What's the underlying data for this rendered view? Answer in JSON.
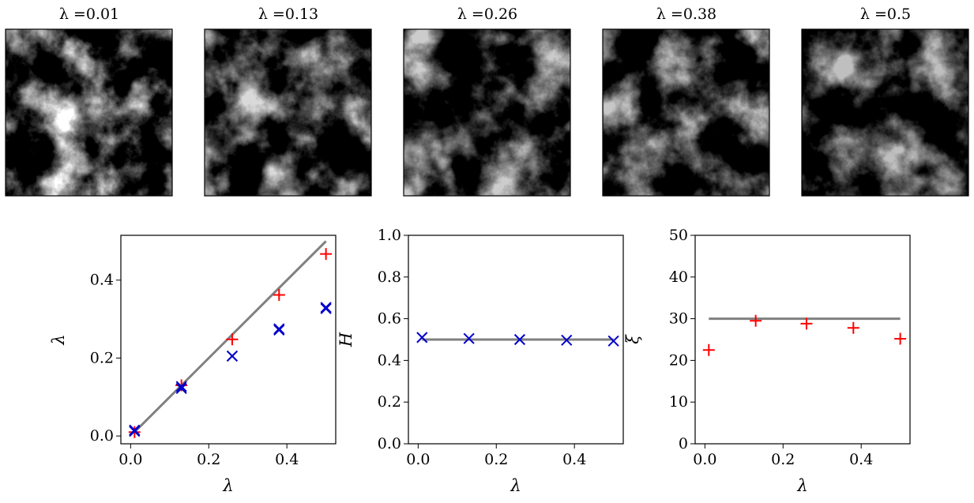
{
  "lambda_symbol": "λ",
  "colors": {
    "theory_line": "#808080",
    "red_markers": "#ff0000",
    "blue_markers": "#0000cc",
    "axes": "#000000"
  },
  "fields": [
    {
      "label": "λ =0.01"
    },
    {
      "label": "λ =0.13"
    },
    {
      "label": "λ =0.26"
    },
    {
      "label": "λ =0.38"
    },
    {
      "label": "λ =0.5"
    }
  ],
  "chart_data": [
    {
      "type": "scatter",
      "xlabel": "λ",
      "ylabel": "λ",
      "xlim": [
        -0.025,
        0.525
      ],
      "ylim": [
        -0.02,
        0.515
      ],
      "xticks": [
        0.0,
        0.2,
        0.4
      ],
      "yticks": [
        0.0,
        0.2,
        0.4
      ],
      "xtick_labels": [
        "0.0",
        "0.2",
        "0.4"
      ],
      "ytick_labels": [
        "0.0",
        "0.2",
        "0.4"
      ],
      "grid": false,
      "lines": [
        {
          "x": [
            0.01,
            0.5
          ],
          "y": [
            0.01,
            0.5
          ],
          "color": "#808080"
        }
      ],
      "series": [
        {
          "marker": "+",
          "color": "#ff0000",
          "x": [
            0.01,
            0.13,
            0.26,
            0.38,
            0.5
          ],
          "y": [
            0.01,
            0.13,
            0.248,
            0.362,
            0.467
          ]
        },
        {
          "marker": "x",
          "color": "#0000cc",
          "x": [
            0.01,
            0.13,
            0.26,
            0.38,
            0.5
          ],
          "y": [
            0.015,
            0.122,
            0.205,
            0.275,
            0.33
          ]
        },
        {
          "marker": "x",
          "color": "#0000cc",
          "x": [
            0.01,
            0.13,
            0.26,
            0.38,
            0.5
          ],
          "y": [
            0.012,
            0.127,
            0.205,
            0.272,
            0.327
          ]
        }
      ]
    },
    {
      "type": "scatter",
      "xlabel": "λ",
      "ylabel": "H",
      "xlim": [
        -0.025,
        0.525
      ],
      "ylim": [
        0.0,
        1.0
      ],
      "xticks": [
        0.0,
        0.2,
        0.4
      ],
      "yticks": [
        0.0,
        0.2,
        0.4,
        0.6,
        0.8,
        1.0
      ],
      "xtick_labels": [
        "0.0",
        "0.2",
        "0.4"
      ],
      "ytick_labels": [
        "0.0",
        "0.2",
        "0.4",
        "0.6",
        "0.8",
        "1.0"
      ],
      "grid": false,
      "lines": [
        {
          "x": [
            0.01,
            0.5
          ],
          "y": [
            0.5,
            0.5
          ],
          "color": "#808080"
        }
      ],
      "series": [
        {
          "marker": "x",
          "color": "#0000cc",
          "x": [
            0.01,
            0.13,
            0.26,
            0.38,
            0.5
          ],
          "y": [
            0.51,
            0.505,
            0.5,
            0.497,
            0.493
          ]
        }
      ]
    },
    {
      "type": "scatter",
      "xlabel": "λ",
      "ylabel": "ξ",
      "xlim": [
        -0.025,
        0.525
      ],
      "ylim": [
        0,
        50
      ],
      "xticks": [
        0.0,
        0.2,
        0.4
      ],
      "yticks": [
        0,
        10,
        20,
        30,
        40,
        50
      ],
      "xtick_labels": [
        "0.0",
        "0.2",
        "0.4"
      ],
      "ytick_labels": [
        "0",
        "10",
        "20",
        "30",
        "40",
        "50"
      ],
      "grid": false,
      "lines": [
        {
          "x": [
            0.01,
            0.5
          ],
          "y": [
            30,
            30
          ],
          "color": "#808080"
        }
      ],
      "series": [
        {
          "marker": "+",
          "color": "#ff0000",
          "x": [
            0.01,
            0.13,
            0.26,
            0.38,
            0.5
          ],
          "y": [
            22.5,
            29.5,
            28.8,
            27.8,
            25.2
          ]
        }
      ]
    }
  ]
}
